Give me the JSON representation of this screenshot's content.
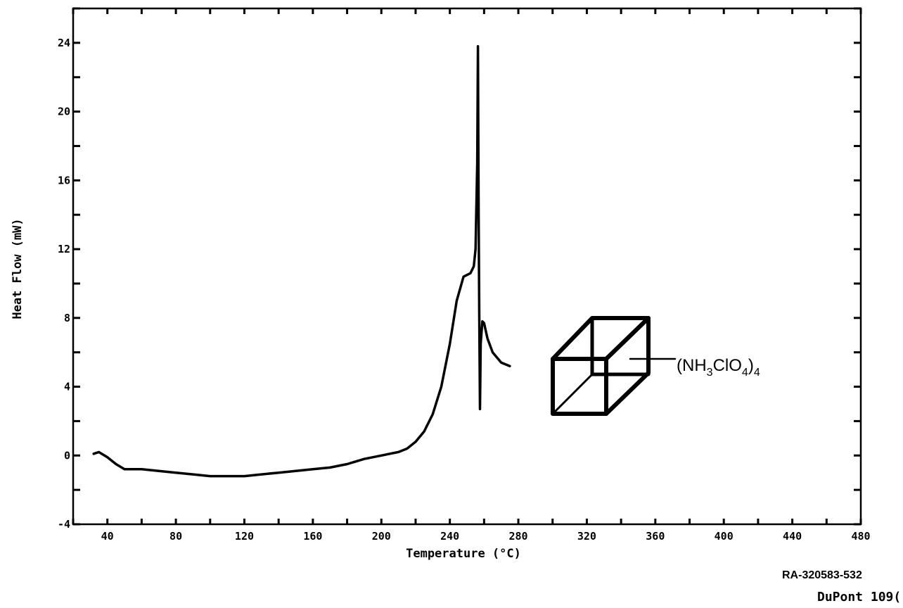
{
  "chart_data": {
    "type": "line",
    "title": "",
    "xlabel": "Temperature (°C)",
    "ylabel": "Heat Flow (mW)",
    "xlim": [
      20,
      480
    ],
    "ylim": [
      -4,
      26
    ],
    "x_ticks": [
      40,
      80,
      120,
      160,
      200,
      240,
      280,
      320,
      360,
      400,
      440,
      480
    ],
    "x_tick_labels": [
      "40",
      "80",
      "120",
      "160",
      "200",
      "240",
      "280",
      "320",
      "360",
      "400",
      "440",
      "480"
    ],
    "y_ticks": [
      -4,
      0,
      4,
      8,
      12,
      16,
      20,
      24
    ],
    "y_tick_labels": [
      "-4",
      "0",
      "4",
      "8",
      "12",
      "16",
      "20",
      "24"
    ],
    "grid": false,
    "series": [
      {
        "x": [
          32,
          35,
          40,
          45,
          50,
          55,
          60,
          70,
          80,
          90,
          100,
          110,
          120,
          130,
          140,
          150,
          160,
          170,
          180,
          190,
          200,
          205,
          210,
          215,
          220,
          225,
          230,
          235,
          240,
          244,
          248,
          250,
          252,
          254,
          255,
          256,
          256.4,
          256.8,
          257.2,
          257.6,
          258,
          259,
          260,
          262,
          265,
          270,
          275
        ],
        "y": [
          0.1,
          0.2,
          -0.1,
          -0.5,
          -0.8,
          -0.8,
          -0.8,
          -0.9,
          -1.0,
          -1.1,
          -1.2,
          -1.2,
          -1.2,
          -1.1,
          -1.0,
          -0.9,
          -0.8,
          -0.7,
          -0.5,
          -0.2,
          0.0,
          0.1,
          0.2,
          0.4,
          0.8,
          1.4,
          2.4,
          4.0,
          6.5,
          9.0,
          10.4,
          10.5,
          10.6,
          11.0,
          12.0,
          17.0,
          23.8,
          14.0,
          8.0,
          2.7,
          6.5,
          7.8,
          7.7,
          6.8,
          6.0,
          5.4,
          5.2
        ]
      }
    ],
    "annotation": {
      "formula_text": "(NH",
      "formula_sub1": "3",
      "formula_mid": "ClO",
      "formula_sub2": "4",
      "formula_close": ")",
      "formula_sub3": "4"
    }
  },
  "footer": {
    "reference_code": "RA-320583-532",
    "instrument": "DuPont 109("
  }
}
